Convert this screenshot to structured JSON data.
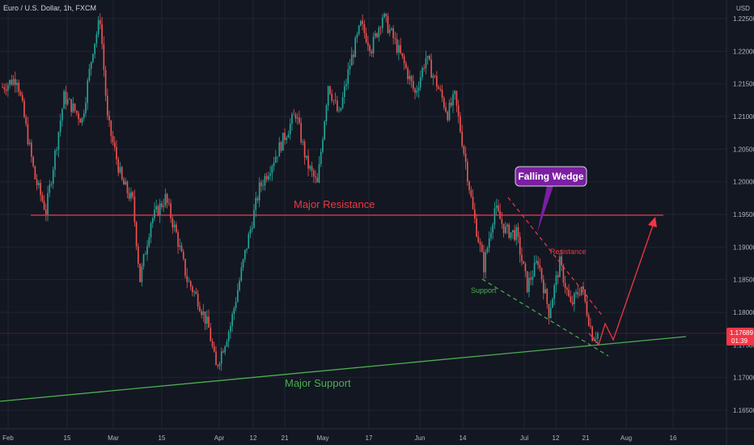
{
  "chart_data": {
    "type": "candlestick",
    "title": "Euro / U.S. Dollar, 1h, FXCM",
    "currency": "USD",
    "y_ticks": [
      "1.22500",
      "1.22000",
      "1.21500",
      "1.21000",
      "1.20500",
      "1.20000",
      "1.19500",
      "1.19000",
      "1.18500",
      "1.18000",
      "1.17500",
      "1.17000",
      "1.16500"
    ],
    "ylim": [
      1.16,
      1.2285
    ],
    "x_ticks": [
      "Feb",
      "15",
      "Mar",
      "15",
      "Apr",
      "12",
      "21",
      "May",
      "17",
      "Jun",
      "14",
      "Jul",
      "12",
      "21",
      "Aug",
      "16"
    ],
    "grid": true,
    "last_price": "1.17689",
    "countdown": "01:39",
    "colors": {
      "background": "#131722",
      "grid": "#1f2433",
      "up": "#26a69a",
      "down": "#ef5350",
      "resistance": "#f23645",
      "support": "#4caf50",
      "wedge_label_bg": "#7b1fa2"
    },
    "key_points": [
      [
        0,
        1.2145
      ],
      [
        0.02,
        1.216
      ],
      [
        0.045,
        1.2005
      ],
      [
        0.06,
        1.1955
      ],
      [
        0.085,
        1.213
      ],
      [
        0.11,
        1.2095
      ],
      [
        0.125,
        1.2205
      ],
      [
        0.135,
        1.225
      ],
      [
        0.145,
        1.2095
      ],
      [
        0.165,
        1.2
      ],
      [
        0.18,
        1.197
      ],
      [
        0.19,
        1.185
      ],
      [
        0.205,
        1.194
      ],
      [
        0.225,
        1.1975
      ],
      [
        0.24,
        1.192
      ],
      [
        0.255,
        1.185
      ],
      [
        0.27,
        1.182
      ],
      [
        0.285,
        1.1775
      ],
      [
        0.295,
        1.1715
      ],
      [
        0.315,
        1.178
      ],
      [
        0.335,
        1.189
      ],
      [
        0.355,
        1.199
      ],
      [
        0.375,
        1.2035
      ],
      [
        0.39,
        1.207
      ],
      [
        0.405,
        1.2105
      ],
      [
        0.42,
        1.203
      ],
      [
        0.435,
        1.1995
      ],
      [
        0.45,
        1.215
      ],
      [
        0.465,
        1.21
      ],
      [
        0.48,
        1.218
      ],
      [
        0.495,
        1.224
      ],
      [
        0.51,
        1.2205
      ],
      [
        0.525,
        1.2255
      ],
      [
        0.54,
        1.222
      ],
      [
        0.555,
        1.218
      ],
      [
        0.57,
        1.2135
      ],
      [
        0.585,
        1.219
      ],
      [
        0.6,
        1.215
      ],
      [
        0.615,
        1.2105
      ],
      [
        0.625,
        1.213
      ],
      [
        0.64,
        1.203
      ],
      [
        0.65,
        1.1955
      ],
      [
        0.665,
        1.187
      ],
      [
        0.68,
        1.196
      ],
      [
        0.695,
        1.1925
      ],
      [
        0.71,
        1.192
      ],
      [
        0.725,
        1.184
      ],
      [
        0.74,
        1.188
      ],
      [
        0.755,
        1.18
      ],
      [
        0.77,
        1.1875
      ],
      [
        0.785,
        1.181
      ],
      [
        0.8,
        1.184
      ],
      [
        0.815,
        1.1765
      ],
      [
        0.825,
        1.1769
      ]
    ],
    "annotations": {
      "major_resistance": "Major Resistance",
      "major_support": "Major Support",
      "falling_wedge": "Falling Wedge",
      "wedge_resistance": "Resistance",
      "wedge_support": "Support"
    }
  }
}
